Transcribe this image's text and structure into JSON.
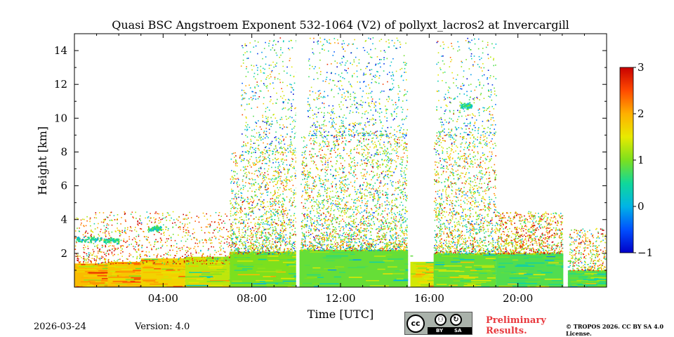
{
  "chart_data": {
    "type": "heatmap",
    "title": "Quasi BSC Angstroem Exponent 532-1064 (V2) of pollyxt_lacros2 at Invercargill",
    "xlabel": "Time [UTC]",
    "ylabel": "Height [km]",
    "xlim": [
      0,
      24
    ],
    "ylim": [
      0,
      15
    ],
    "x_ticks": [
      4,
      8,
      12,
      16,
      20
    ],
    "x_tick_labels": [
      "04:00",
      "08:00",
      "12:00",
      "16:00",
      "20:00"
    ],
    "y_ticks": [
      2,
      4,
      6,
      8,
      10,
      12,
      14
    ],
    "y_tick_labels": [
      "2",
      "4",
      "6",
      "8",
      "10",
      "12",
      "14"
    ],
    "colorbar": {
      "range": [
        -1,
        3
      ],
      "ticks": [
        -1,
        0,
        1,
        2,
        3
      ],
      "tick_labels": [
        "−1",
        "0",
        "1",
        "2",
        "3"
      ],
      "colormap": "jet"
    },
    "data_gaps_hours": [
      [
        10.0,
        10.15
      ],
      [
        15.05,
        15.15
      ],
      [
        22.05,
        22.25
      ]
    ],
    "boundary_layer": [
      {
        "t0": 0.0,
        "t1": 1.5,
        "top_km": 1.4,
        "value": 1.9
      },
      {
        "t0": 1.5,
        "t1": 3.0,
        "top_km": 1.5,
        "value": 1.8
      },
      {
        "t0": 3.0,
        "t1": 5.0,
        "top_km": 1.7,
        "value": 1.7
      },
      {
        "t0": 5.0,
        "t1": 7.0,
        "top_km": 1.8,
        "value": 1.3
      },
      {
        "t0": 7.0,
        "t1": 10.0,
        "top_km": 2.1,
        "value": 1.0
      },
      {
        "t0": 10.15,
        "t1": 15.05,
        "top_km": 2.2,
        "value": 0.9
      },
      {
        "t0": 15.15,
        "t1": 16.2,
        "top_km": 1.5,
        "value": 1.4
      },
      {
        "t0": 16.2,
        "t1": 19.0,
        "top_km": 2.0,
        "value": 0.9
      },
      {
        "t0": 19.0,
        "t1": 22.05,
        "top_km": 2.0,
        "value": 0.8
      },
      {
        "t0": 22.25,
        "t1": 24.0,
        "top_km": 1.0,
        "value": 0.8
      }
    ],
    "scatter_regions": [
      {
        "t0": 0.0,
        "t1": 7.0,
        "h0": 1.4,
        "h1": 4.5,
        "count": 900,
        "mean": 2.0
      },
      {
        "t0": 7.0,
        "t1": 10.0,
        "h0": 2.0,
        "h1": 8.0,
        "count": 1400,
        "mean": 1.2
      },
      {
        "t0": 7.5,
        "t1": 10.0,
        "h0": 8.0,
        "h1": 14.8,
        "count": 450,
        "mean": 0.8
      },
      {
        "t0": 10.2,
        "t1": 15.0,
        "h0": 2.2,
        "h1": 9.0,
        "count": 2400,
        "mean": 1.2
      },
      {
        "t0": 10.5,
        "t1": 15.0,
        "h0": 9.0,
        "h1": 14.8,
        "count": 700,
        "mean": 0.6
      },
      {
        "t0": 16.2,
        "t1": 19.0,
        "h0": 2.0,
        "h1": 9.0,
        "count": 1400,
        "mean": 1.3
      },
      {
        "t0": 16.3,
        "t1": 19.0,
        "h0": 9.0,
        "h1": 14.8,
        "count": 350,
        "mean": 0.7
      },
      {
        "t0": 19.0,
        "t1": 22.0,
        "h0": 2.0,
        "h1": 4.5,
        "count": 900,
        "mean": 1.8
      },
      {
        "t0": 22.3,
        "t1": 24.0,
        "h0": 1.0,
        "h1": 3.5,
        "count": 350,
        "mean": 1.5
      }
    ],
    "features": [
      {
        "name": "aerosol-layer-left",
        "t0": 0.05,
        "t1": 1.2,
        "h": 2.85,
        "value": 0.4
      },
      {
        "name": "aerosol-layer-left-2",
        "t0": 1.3,
        "t1": 2.0,
        "h": 2.8,
        "value": 0.6
      },
      {
        "name": "aerosol-layer-mid",
        "t0": 3.3,
        "t1": 3.9,
        "h": 3.5,
        "value": 0.5
      },
      {
        "name": "cirrus-patch",
        "t0": 17.4,
        "t1": 17.9,
        "h": 10.75,
        "value": 0.5
      }
    ]
  },
  "footer": {
    "date": "2026-03-24",
    "version": "Version: 4.0",
    "preliminary": "Preliminary Results.",
    "copyright": "© TROPOS 2026. CC BY SA 4.0 License.",
    "license_badge": {
      "logo": "cc",
      "by": "BY",
      "sa": "SA",
      "person_icon": "⚇",
      "sa_icon": "↻"
    }
  },
  "colors": {
    "background": "#ffffff",
    "axis": "#000000",
    "preliminary": "#e8383d",
    "badge": "#aab2ab"
  }
}
